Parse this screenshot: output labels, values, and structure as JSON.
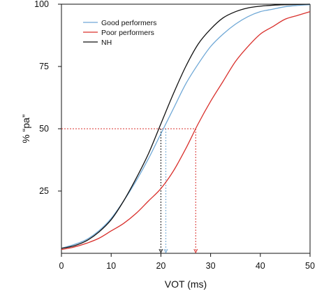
{
  "chart_data": {
    "type": "line",
    "title": "",
    "xlabel": "VOT (ms)",
    "ylabel": "% “pa”",
    "xlim": [
      0,
      50
    ],
    "ylim": [
      0,
      100
    ],
    "xticks": [
      "0",
      "10",
      "20",
      "30",
      "40",
      "50"
    ],
    "yticks": [
      "25",
      "50",
      "75",
      "100"
    ],
    "grid": false,
    "legend_position": "top-left",
    "series": [
      {
        "name": "Good performers",
        "color": "#6fa8d6",
        "x": [
          0,
          2.5,
          5,
          7.5,
          10,
          12.5,
          15,
          17.5,
          20,
          22.5,
          25,
          27.5,
          30,
          32.5,
          35,
          37.5,
          40,
          42.5,
          45,
          47.5,
          50
        ],
        "y": [
          2,
          3.5,
          5.5,
          9,
          14,
          21,
          29,
          38,
          48,
          58,
          68,
          76,
          83,
          88,
          92,
          95,
          97,
          98,
          99,
          99.5,
          99.8
        ],
        "crossover_50": 21
      },
      {
        "name": "Poor performers",
        "color": "#d9302c",
        "x": [
          0,
          2.5,
          5,
          7.5,
          10,
          12.5,
          15,
          17.5,
          20,
          22.5,
          25,
          27.5,
          30,
          32.5,
          35,
          37.5,
          40,
          42.5,
          45,
          47.5,
          50
        ],
        "y": [
          1.5,
          2.5,
          4,
          6,
          9,
          12,
          16,
          21,
          26,
          33,
          42,
          52,
          61,
          69,
          77,
          83,
          88,
          91,
          94,
          95.5,
          97
        ],
        "crossover_50": 27
      },
      {
        "name": "NH",
        "color": "#111111",
        "x": [
          0,
          2.5,
          5,
          7.5,
          10,
          12.5,
          15,
          17.5,
          20,
          22.5,
          25,
          27.5,
          30,
          32.5,
          35,
          37.5,
          40,
          42.5,
          45,
          47.5,
          50
        ],
        "y": [
          2,
          3,
          5,
          8.5,
          13.5,
          21,
          30,
          40,
          52,
          64,
          75,
          84,
          90,
          94.5,
          97,
          98.5,
          99.2,
          99.6,
          99.8,
          99.9,
          100
        ],
        "crossover_50": 20
      }
    ]
  }
}
